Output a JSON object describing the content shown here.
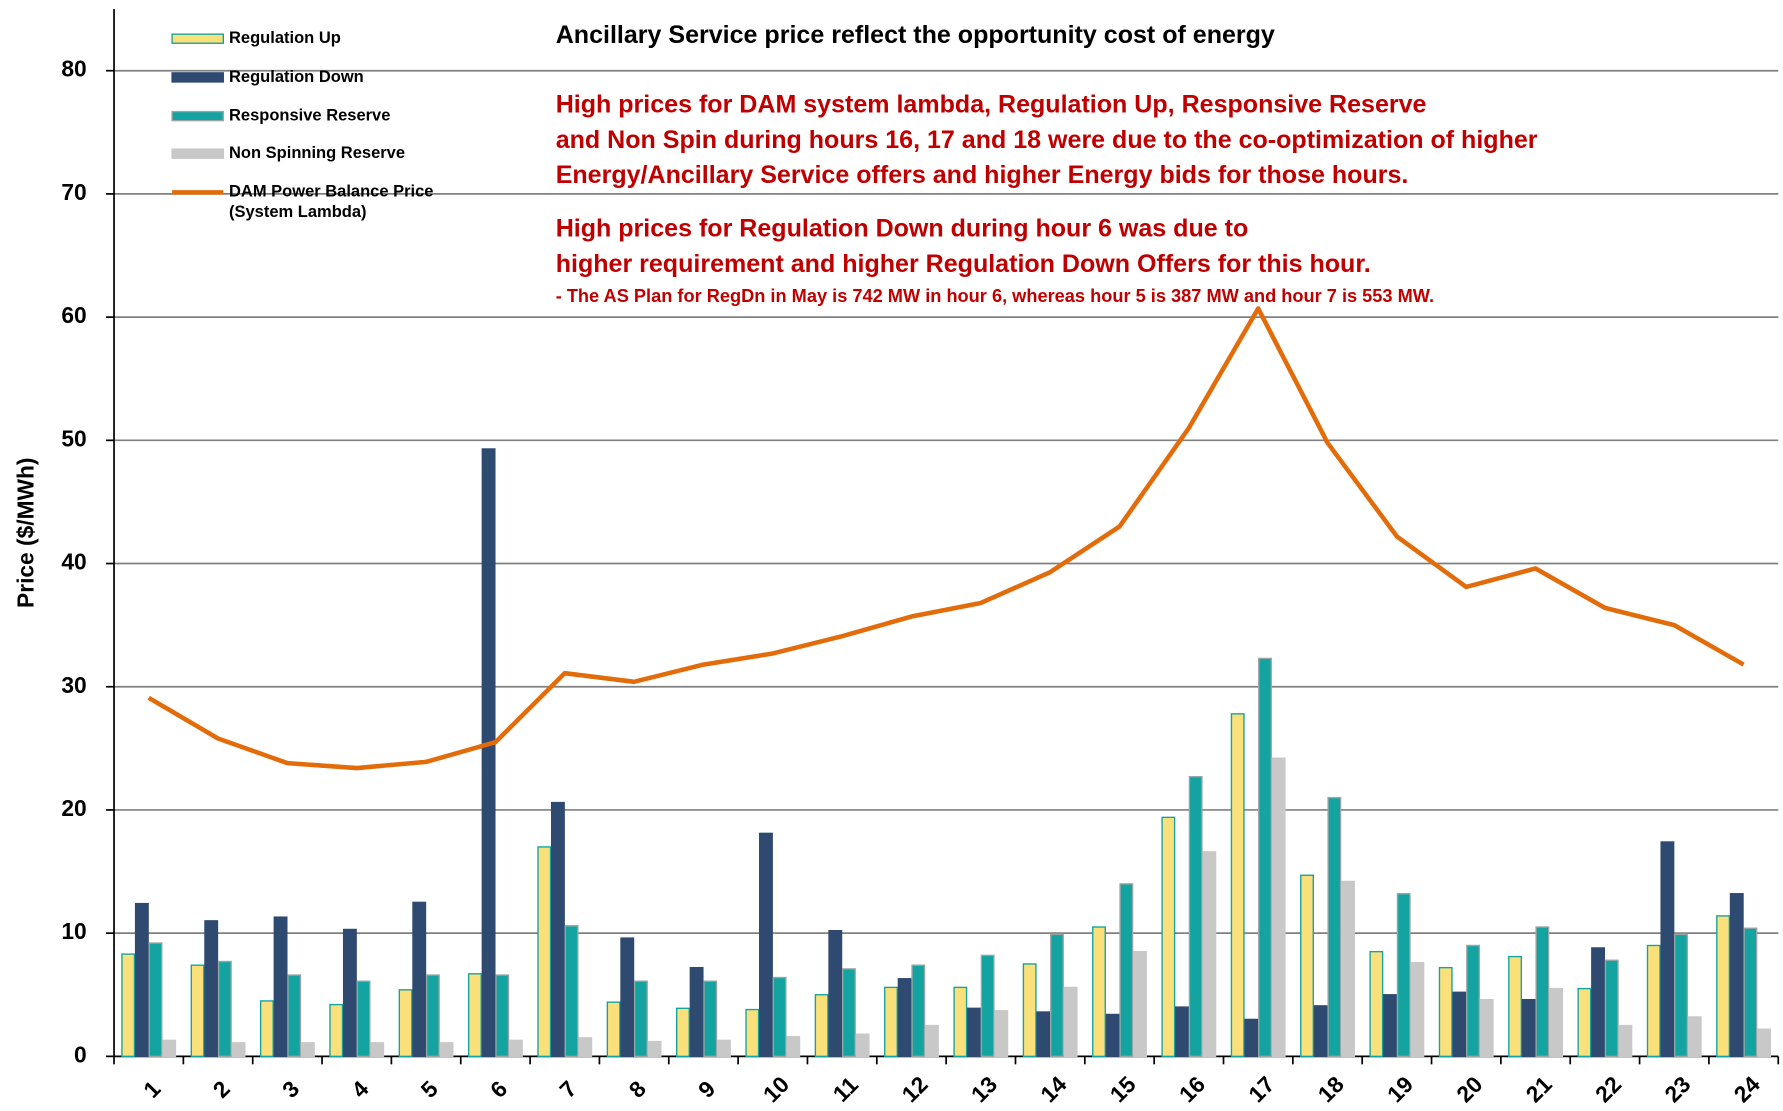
{
  "chart_data": {
    "type": "bar",
    "y_label": "Price ($/MWh)",
    "annotations": [
      {
        "text": "Ancillary Service price reflect the opportunity cost of energy",
        "color": "#000000"
      },
      {
        "text": "High prices for DAM system lambda, Regulation Up,  Responsive Reserve",
        "color": "#c00000"
      },
      {
        "text": "and Non Spin during hours 16, 17 and 18 were due to the co-optimization of higher",
        "color": "#c00000"
      },
      {
        "text": "Energy/Ancillary Service offers  and higher Energy bids for those hours.",
        "color": "#c00000"
      },
      {
        "text": "High prices for Regulation Down during hour 6 was due to",
        "color": "#c00000"
      },
      {
        "text": "higher requirement and higher Regulation Down Offers for this hour.",
        "color": "#c00000"
      },
      {
        "text": "- The AS Plan for RegDn in May is 742 MW in hour 6, whereas hour 5 is 387 MW  and hour 7 is 553 MW.",
        "color": "#c00000"
      }
    ],
    "categories": [
      "1",
      "2",
      "3",
      "4",
      "5",
      "6",
      "7",
      "8",
      "9",
      "10",
      "11",
      "12",
      "13",
      "14",
      "15",
      "16",
      "17",
      "18",
      "19",
      "20",
      "21",
      "22",
      "23",
      "24"
    ],
    "series": [
      {
        "name": "Regulation Up",
        "type": "bar",
        "color": "#f9e07a",
        "stroke": "#14a3a0",
        "values": [
          8.3,
          7.4,
          4.5,
          4.2,
          5.4,
          6.7,
          17.0,
          4.4,
          3.9,
          3.8,
          5.0,
          5.6,
          5.6,
          7.5,
          10.5,
          19.4,
          27.8,
          14.7,
          8.5,
          7.2,
          8.1,
          5.5,
          9.0,
          11.4
        ]
      },
      {
        "name": "Regulation Down",
        "type": "bar",
        "color": "#2e4a70",
        "stroke": "#2e4a70",
        "values": [
          12.4,
          11.0,
          11.3,
          10.3,
          12.5,
          49.3,
          20.6,
          9.6,
          7.2,
          18.1,
          10.2,
          6.3,
          3.9,
          3.6,
          3.4,
          4.0,
          3.0,
          4.1,
          5.0,
          5.2,
          4.6,
          8.8,
          17.4,
          13.2
        ]
      },
      {
        "name": "Responsive Reserve",
        "type": "bar",
        "color": "#13a3a0",
        "stroke": "#9aa5a5",
        "values": [
          9.2,
          7.7,
          6.6,
          6.1,
          6.6,
          6.6,
          10.6,
          6.1,
          6.1,
          6.4,
          7.1,
          7.4,
          8.2,
          9.9,
          14.0,
          22.7,
          32.3,
          21.0,
          13.2,
          9.0,
          10.5,
          7.8,
          9.9,
          10.4
        ]
      },
      {
        "name": "Non Spinning Reserve",
        "type": "bar",
        "color": "#c8c8c8",
        "stroke": "#c8c8c8",
        "values": [
          1.3,
          1.1,
          1.1,
          1.1,
          1.1,
          1.3,
          1.5,
          1.2,
          1.3,
          1.6,
          1.8,
          2.5,
          3.7,
          5.6,
          8.5,
          16.6,
          24.2,
          14.2,
          7.6,
          4.6,
          5.5,
          2.5,
          3.2,
          2.2
        ]
      },
      {
        "name": "DAM Power Balance Price\n(System Lambda)",
        "type": "line",
        "color": "#e36c0a",
        "values": [
          29.1,
          25.8,
          23.8,
          23.4,
          23.9,
          25.5,
          31.1,
          30.4,
          31.8,
          32.7,
          34.1,
          35.7,
          36.8,
          39.3,
          43.0,
          51.0,
          60.7,
          49.8,
          42.2,
          38.1,
          39.6,
          36.4,
          35.0,
          31.8
        ]
      }
    ],
    "ylim": [
      0,
      85
    ],
    "yticks": [
      0,
      10,
      20,
      30,
      40,
      50,
      60,
      70,
      80
    ],
    "grid": true,
    "legend": "top-left"
  }
}
